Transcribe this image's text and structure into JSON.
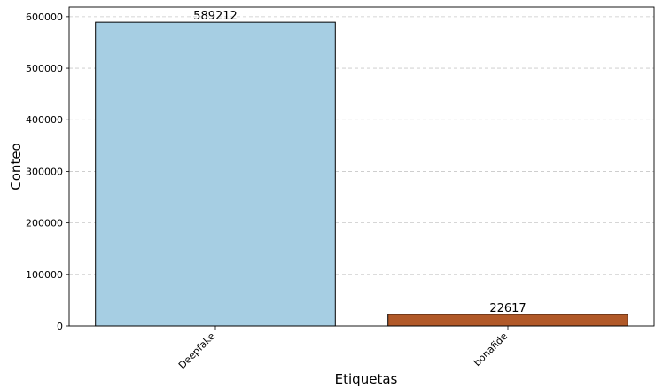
{
  "chart_data": {
    "type": "bar",
    "categories": [
      "Deepfake",
      "bonafide"
    ],
    "values": [
      589212,
      22617
    ],
    "data_labels": [
      "589212",
      "22617"
    ],
    "colors": [
      "#a6cee3",
      "#b15928"
    ],
    "edge_color": "#000000",
    "xlabel": "Etiquetas",
    "ylabel": "Conteo",
    "ylim": [
      0,
      618672
    ],
    "y_ticks": [
      0,
      100000,
      200000,
      300000,
      400000,
      500000,
      600000
    ],
    "y_tick_labels": [
      "0",
      "100000",
      "200000",
      "300000",
      "400000",
      "500000",
      "600000"
    ],
    "x_tick_rotation": 45,
    "grid": "y-dashed",
    "grid_color": "#c8c8c8"
  }
}
